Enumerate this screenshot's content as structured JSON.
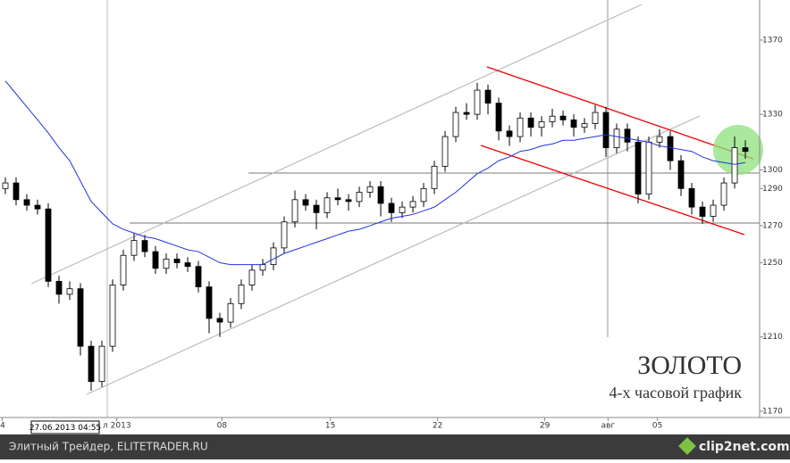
{
  "chart_data": {
    "type": "candlestick",
    "open": [
      1290,
      1293,
      1284,
      1281,
      1279,
      1240,
      1233,
      1236,
      1205,
      1186,
      1205,
      1238,
      1254,
      1262,
      1256,
      1247,
      1252,
      1250,
      1248,
      1237,
      1220,
      1218,
      1228,
      1238,
      1246,
      1249,
      1258,
      1272,
      1284,
      1281,
      1277,
      1285,
      1284,
      1283,
      1288,
      1291,
      1282,
      1277,
      1280,
      1283,
      1290,
      1302,
      1318,
      1331,
      1330,
      1343,
      1336,
      1321,
      1318,
      1328,
      1323,
      1326,
      1329,
      1327,
      1323,
      1325,
      1331,
      1312,
      1322,
      1315,
      1287,
      1315,
      1318,
      1305,
      1290,
      1280,
      1275,
      1281,
      1293,
      1312
    ],
    "high": [
      1296,
      1296,
      1287,
      1284,
      1282,
      1243,
      1240,
      1239,
      1208,
      1208,
      1241,
      1257,
      1266,
      1265,
      1259,
      1255,
      1255,
      1253,
      1251,
      1240,
      1223,
      1231,
      1241,
      1249,
      1252,
      1261,
      1275,
      1289,
      1287,
      1284,
      1288,
      1290,
      1287,
      1291,
      1294,
      1294,
      1285,
      1283,
      1286,
      1293,
      1305,
      1321,
      1334,
      1336,
      1347,
      1346,
      1339,
      1324,
      1331,
      1331,
      1329,
      1333,
      1332,
      1330,
      1328,
      1335,
      1334,
      1325,
      1325,
      1318,
      1318,
      1322,
      1321,
      1308,
      1293,
      1283,
      1284,
      1296,
      1318,
      1316
    ],
    "low": [
      1287,
      1281,
      1278,
      1276,
      1237,
      1228,
      1230,
      1200,
      1181,
      1183,
      1202,
      1235,
      1251,
      1253,
      1244,
      1244,
      1247,
      1245,
      1234,
      1212,
      1210,
      1215,
      1225,
      1235,
      1243,
      1246,
      1255,
      1269,
      1278,
      1268,
      1274,
      1281,
      1278,
      1280,
      1285,
      1275,
      1272,
      1274,
      1277,
      1280,
      1287,
      1299,
      1315,
      1327,
      1327,
      1330,
      1316,
      1313,
      1315,
      1318,
      1318,
      1323,
      1324,
      1318,
      1320,
      1322,
      1307,
      1309,
      1310,
      1282,
      1284,
      1312,
      1300,
      1286,
      1276,
      1271,
      1272,
      1278,
      1290,
      1306
    ],
    "close": [
      1293,
      1284,
      1281,
      1279,
      1240,
      1233,
      1236,
      1205,
      1186,
      1205,
      1238,
      1254,
      1262,
      1256,
      1247,
      1252,
      1250,
      1248,
      1237,
      1220,
      1218,
      1228,
      1238,
      1246,
      1249,
      1258,
      1272,
      1284,
      1281,
      1277,
      1285,
      1284,
      1283,
      1288,
      1291,
      1282,
      1277,
      1280,
      1283,
      1290,
      1302,
      1318,
      1331,
      1330,
      1343,
      1336,
      1321,
      1318,
      1328,
      1323,
      1326,
      1329,
      1327,
      1323,
      1325,
      1331,
      1312,
      1322,
      1315,
      1287,
      1315,
      1318,
      1305,
      1290,
      1280,
      1275,
      1281,
      1293,
      1312,
      1310
    ],
    "ma": [
      1348,
      1341,
      1334,
      1327,
      1320,
      1312,
      1305,
      1294,
      1283,
      1277,
      1271,
      1268,
      1266,
      1264,
      1263,
      1261,
      1259,
      1257,
      1256,
      1253,
      1250,
      1249,
      1249,
      1249,
      1249,
      1252,
      1255,
      1257,
      1259,
      1261,
      1263,
      1265,
      1267,
      1268,
      1270,
      1272,
      1274,
      1275,
      1276,
      1278,
      1280,
      1284,
      1288,
      1293,
      1298,
      1301,
      1305,
      1307,
      1310,
      1311,
      1313,
      1314,
      1316,
      1316,
      1317,
      1318,
      1319,
      1318,
      1317,
      1316,
      1315,
      1313,
      1312,
      1311,
      1310,
      1307,
      1305,
      1304,
      1303,
      1304
    ],
    "ma_color": "#2233dd",
    "xlim": [
      -0.5,
      70.33
    ],
    "xticks": [
      {
        "value": -0.3,
        "label": "4"
      },
      {
        "value": 10.4,
        "label": "л 2013"
      },
      {
        "value": 20.2,
        "label": "08"
      },
      {
        "value": 30.3,
        "label": "15"
      },
      {
        "value": 40.3,
        "label": "22"
      },
      {
        "value": 50.3,
        "label": "29"
      },
      {
        "value": 56.2,
        "label": "авг"
      },
      {
        "value": 60.8,
        "label": "05"
      }
    ],
    "ylim": [
      1166.6,
      1391.6
    ],
    "yticks": [
      1170,
      1210,
      1250,
      1270,
      1290,
      1300,
      1330,
      1370
    ],
    "cursor_label": "27.06.2013 04:55",
    "annotations": [
      "ЗОЛОТО",
      "4-х часовой график"
    ]
  },
  "footer": {
    "left": "Элитный Трейдер, ELITETRADER.RU",
    "right": "clip2net.com"
  }
}
